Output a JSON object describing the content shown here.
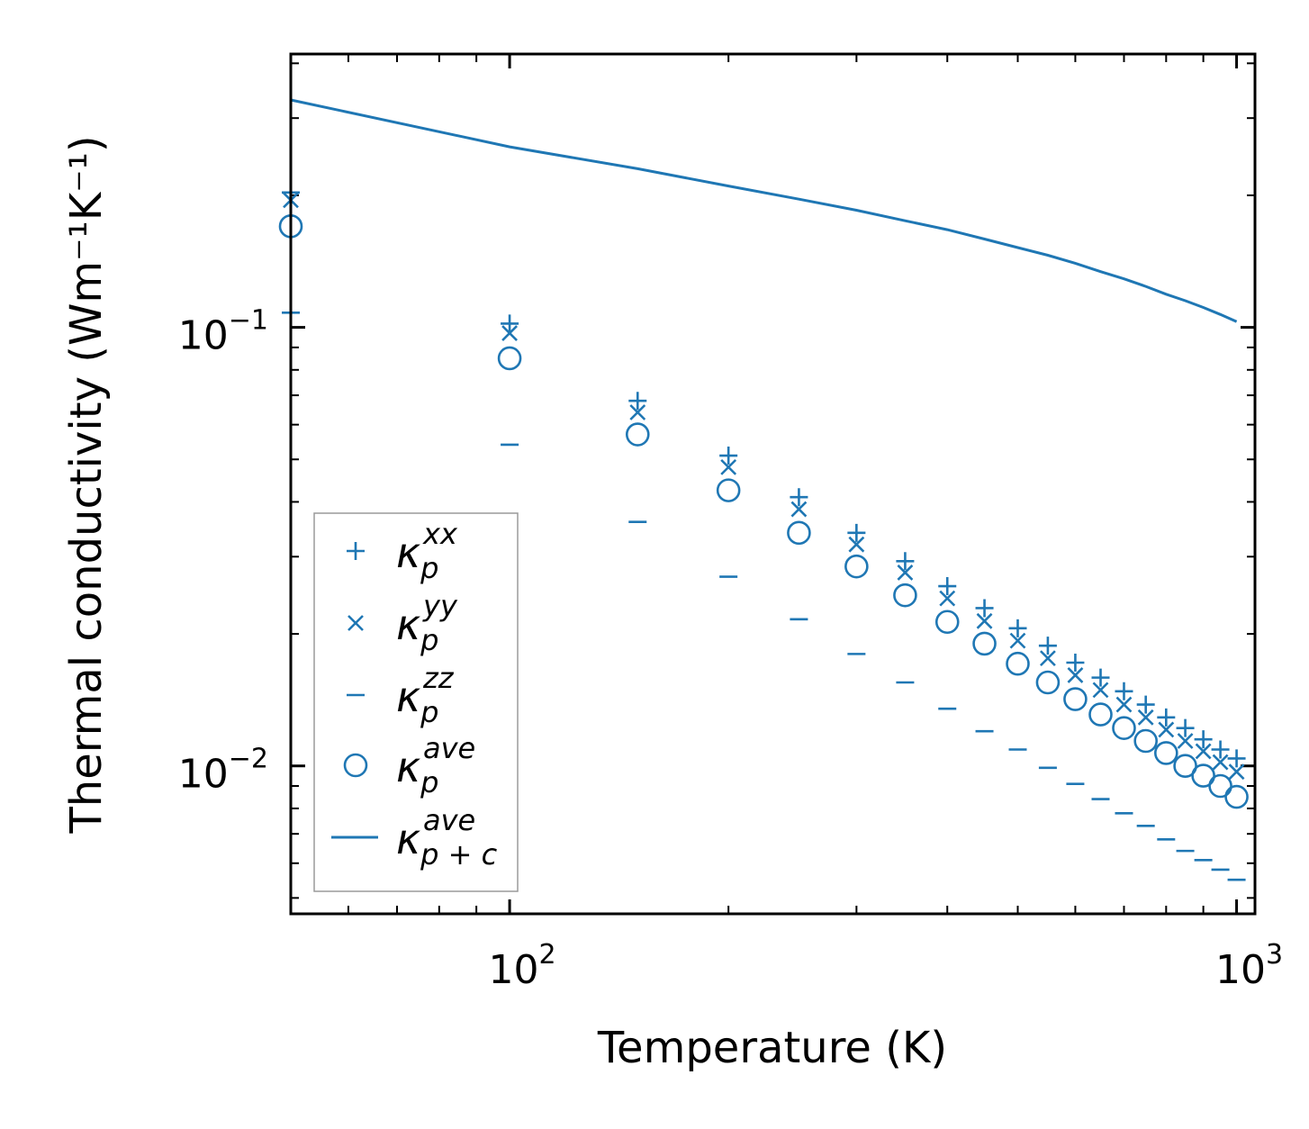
{
  "chart_data": {
    "type": "scatter",
    "title": "",
    "xlabel": "Temperature (K)",
    "ylabel": "Thermal conductivity (Wm⁻¹K⁻¹)",
    "xscale": "log",
    "yscale": "log",
    "xlim": [
      50,
      1060
    ],
    "ylim": [
      0.0046,
      0.42
    ],
    "color": "#1f77b4",
    "xticks": [
      {
        "value": 100,
        "base": "10",
        "exp": "2"
      },
      {
        "value": 1000,
        "base": "10",
        "exp": "3"
      }
    ],
    "yticks": [
      {
        "value": 0.1,
        "base": "10",
        "exp": "−1"
      },
      {
        "value": 0.01,
        "base": "10",
        "exp": "−2"
      }
    ],
    "legend_position": "lower-left",
    "x": [
      50,
      100,
      150,
      200,
      250,
      300,
      350,
      400,
      450,
      500,
      550,
      600,
      650,
      700,
      750,
      800,
      850,
      900,
      950,
      1000
    ],
    "series": [
      {
        "name": "kappa_p_xx",
        "label_base": "κ",
        "label_sub": "p",
        "label_sup": "xx",
        "marker": "plus",
        "values": [
          0.203,
          0.102,
          0.068,
          0.051,
          0.041,
          0.034,
          0.0293,
          0.0257,
          0.0229,
          0.0206,
          0.0188,
          0.0172,
          0.0159,
          0.0148,
          0.0138,
          0.0129,
          0.0122,
          0.0115,
          0.0109,
          0.0104
        ]
      },
      {
        "name": "kappa_p_yy",
        "label_base": "κ",
        "label_sub": "p",
        "label_sup": "yy",
        "marker": "x",
        "values": [
          0.195,
          0.097,
          0.064,
          0.048,
          0.0385,
          0.032,
          0.0276,
          0.0241,
          0.0214,
          0.0193,
          0.0176,
          0.0161,
          0.0149,
          0.0138,
          0.0129,
          0.0121,
          0.0114,
          0.0108,
          0.0102,
          0.0097
        ]
      },
      {
        "name": "kappa_p_zz",
        "label_base": "κ",
        "label_sub": "p",
        "label_sup": "zz",
        "marker": "hline",
        "values": [
          0.108,
          0.054,
          0.036,
          0.027,
          0.0216,
          0.018,
          0.0155,
          0.0135,
          0.012,
          0.0109,
          0.0099,
          0.0091,
          0.0084,
          0.0078,
          0.0073,
          0.0068,
          0.0064,
          0.0061,
          0.0058,
          0.0055
        ]
      },
      {
        "name": "kappa_p_ave",
        "label_base": "κ",
        "label_sub": "p",
        "label_sup": "ave",
        "marker": "circle",
        "values": [
          0.17,
          0.085,
          0.057,
          0.0425,
          0.034,
          0.0285,
          0.0245,
          0.0213,
          0.019,
          0.0171,
          0.0155,
          0.0142,
          0.0131,
          0.0122,
          0.0114,
          0.0107,
          0.01,
          0.0095,
          0.009,
          0.0085
        ]
      },
      {
        "name": "kappa_p+c_ave",
        "label_base": "κ",
        "label_sub": "p + c",
        "label_sup": "ave",
        "marker": "line",
        "values": [
          0.33,
          0.258,
          0.23,
          0.21,
          0.196,
          0.185,
          0.175,
          0.167,
          0.159,
          0.152,
          0.146,
          0.14,
          0.134,
          0.129,
          0.124,
          0.119,
          0.115,
          0.111,
          0.107,
          0.103
        ]
      }
    ]
  }
}
